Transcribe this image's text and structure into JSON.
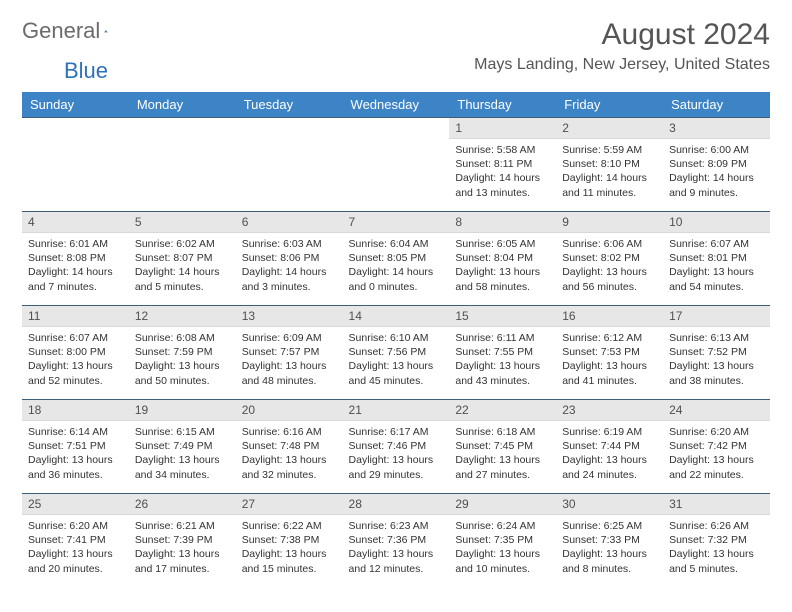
{
  "brand": {
    "part1": "General",
    "part2": "Blue"
  },
  "title": "August 2024",
  "location": "Mays Landing, New Jersey, United States",
  "colors": {
    "header_bg": "#3d84c6",
    "header_text": "#ffffff",
    "daynum_bg": "#e7e7e7",
    "border": "#3d5f7a",
    "logo_gray": "#6b6b6b",
    "logo_blue": "#2f72b8"
  },
  "weekdays": [
    "Sunday",
    "Monday",
    "Tuesday",
    "Wednesday",
    "Thursday",
    "Friday",
    "Saturday"
  ],
  "weeks": [
    [
      {
        "empty": true
      },
      {
        "empty": true
      },
      {
        "empty": true
      },
      {
        "empty": true
      },
      {
        "day": "1",
        "sunrise": "5:58 AM",
        "sunset": "8:11 PM",
        "daylight": "14 hours and 13 minutes."
      },
      {
        "day": "2",
        "sunrise": "5:59 AM",
        "sunset": "8:10 PM",
        "daylight": "14 hours and 11 minutes."
      },
      {
        "day": "3",
        "sunrise": "6:00 AM",
        "sunset": "8:09 PM",
        "daylight": "14 hours and 9 minutes."
      }
    ],
    [
      {
        "day": "4",
        "sunrise": "6:01 AM",
        "sunset": "8:08 PM",
        "daylight": "14 hours and 7 minutes."
      },
      {
        "day": "5",
        "sunrise": "6:02 AM",
        "sunset": "8:07 PM",
        "daylight": "14 hours and 5 minutes."
      },
      {
        "day": "6",
        "sunrise": "6:03 AM",
        "sunset": "8:06 PM",
        "daylight": "14 hours and 3 minutes."
      },
      {
        "day": "7",
        "sunrise": "6:04 AM",
        "sunset": "8:05 PM",
        "daylight": "14 hours and 0 minutes."
      },
      {
        "day": "8",
        "sunrise": "6:05 AM",
        "sunset": "8:04 PM",
        "daylight": "13 hours and 58 minutes."
      },
      {
        "day": "9",
        "sunrise": "6:06 AM",
        "sunset": "8:02 PM",
        "daylight": "13 hours and 56 minutes."
      },
      {
        "day": "10",
        "sunrise": "6:07 AM",
        "sunset": "8:01 PM",
        "daylight": "13 hours and 54 minutes."
      }
    ],
    [
      {
        "day": "11",
        "sunrise": "6:07 AM",
        "sunset": "8:00 PM",
        "daylight": "13 hours and 52 minutes."
      },
      {
        "day": "12",
        "sunrise": "6:08 AM",
        "sunset": "7:59 PM",
        "daylight": "13 hours and 50 minutes."
      },
      {
        "day": "13",
        "sunrise": "6:09 AM",
        "sunset": "7:57 PM",
        "daylight": "13 hours and 48 minutes."
      },
      {
        "day": "14",
        "sunrise": "6:10 AM",
        "sunset": "7:56 PM",
        "daylight": "13 hours and 45 minutes."
      },
      {
        "day": "15",
        "sunrise": "6:11 AM",
        "sunset": "7:55 PM",
        "daylight": "13 hours and 43 minutes."
      },
      {
        "day": "16",
        "sunrise": "6:12 AM",
        "sunset": "7:53 PM",
        "daylight": "13 hours and 41 minutes."
      },
      {
        "day": "17",
        "sunrise": "6:13 AM",
        "sunset": "7:52 PM",
        "daylight": "13 hours and 38 minutes."
      }
    ],
    [
      {
        "day": "18",
        "sunrise": "6:14 AM",
        "sunset": "7:51 PM",
        "daylight": "13 hours and 36 minutes."
      },
      {
        "day": "19",
        "sunrise": "6:15 AM",
        "sunset": "7:49 PM",
        "daylight": "13 hours and 34 minutes."
      },
      {
        "day": "20",
        "sunrise": "6:16 AM",
        "sunset": "7:48 PM",
        "daylight": "13 hours and 32 minutes."
      },
      {
        "day": "21",
        "sunrise": "6:17 AM",
        "sunset": "7:46 PM",
        "daylight": "13 hours and 29 minutes."
      },
      {
        "day": "22",
        "sunrise": "6:18 AM",
        "sunset": "7:45 PM",
        "daylight": "13 hours and 27 minutes."
      },
      {
        "day": "23",
        "sunrise": "6:19 AM",
        "sunset": "7:44 PM",
        "daylight": "13 hours and 24 minutes."
      },
      {
        "day": "24",
        "sunrise": "6:20 AM",
        "sunset": "7:42 PM",
        "daylight": "13 hours and 22 minutes."
      }
    ],
    [
      {
        "day": "25",
        "sunrise": "6:20 AM",
        "sunset": "7:41 PM",
        "daylight": "13 hours and 20 minutes."
      },
      {
        "day": "26",
        "sunrise": "6:21 AM",
        "sunset": "7:39 PM",
        "daylight": "13 hours and 17 minutes."
      },
      {
        "day": "27",
        "sunrise": "6:22 AM",
        "sunset": "7:38 PM",
        "daylight": "13 hours and 15 minutes."
      },
      {
        "day": "28",
        "sunrise": "6:23 AM",
        "sunset": "7:36 PM",
        "daylight": "13 hours and 12 minutes."
      },
      {
        "day": "29",
        "sunrise": "6:24 AM",
        "sunset": "7:35 PM",
        "daylight": "13 hours and 10 minutes."
      },
      {
        "day": "30",
        "sunrise": "6:25 AM",
        "sunset": "7:33 PM",
        "daylight": "13 hours and 8 minutes."
      },
      {
        "day": "31",
        "sunrise": "6:26 AM",
        "sunset": "7:32 PM",
        "daylight": "13 hours and 5 minutes."
      }
    ]
  ],
  "labels": {
    "sunrise": "Sunrise:",
    "sunset": "Sunset:",
    "daylight": "Daylight:"
  }
}
